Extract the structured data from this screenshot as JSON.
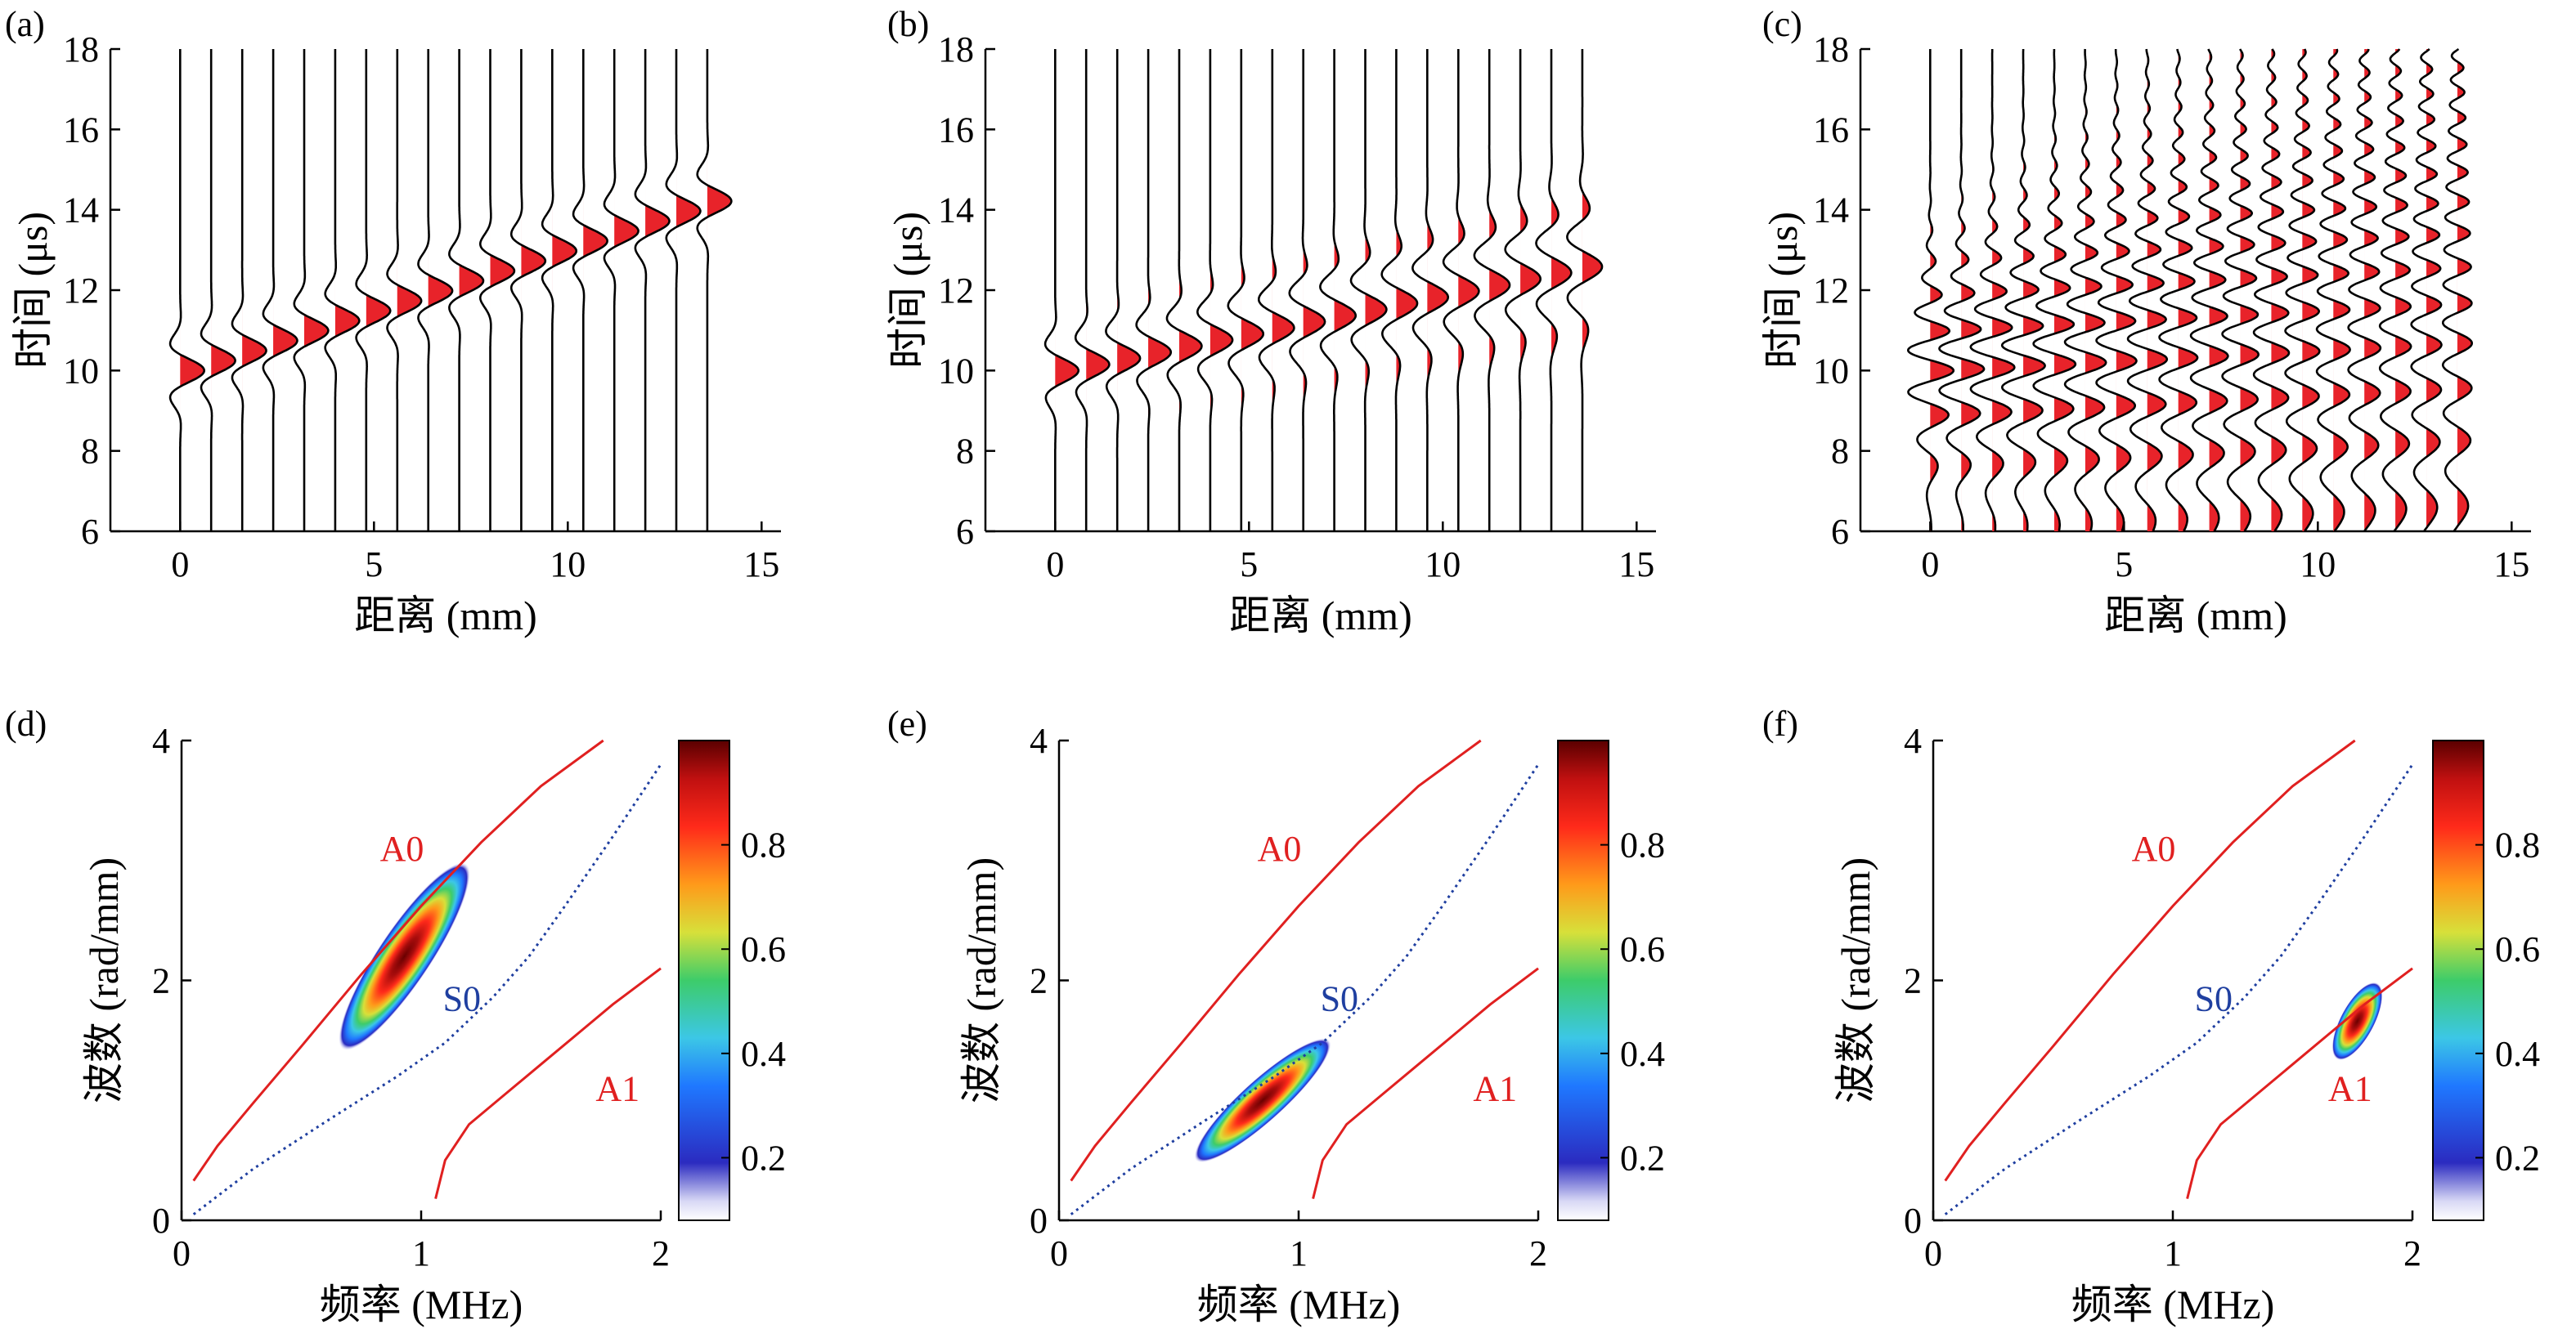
{
  "figure": {
    "panel_labels": [
      "(a)",
      "(b)",
      "(c)",
      "(d)",
      "(e)",
      "(f)"
    ]
  },
  "colors": {
    "fill_red": "#e8232a",
    "a_mode_red": "#e02020",
    "s0_blue": "#1f3fa0",
    "trace": "#000000"
  },
  "chart_data": [
    {
      "id": "a",
      "type": "line",
      "subtype": "waterfall-waveforms",
      "panel_label": "(a)",
      "xlabel": "距离 (mm)",
      "ylabel": "时间 (μs)",
      "xlim": [
        -1.8,
        15.5
      ],
      "ylim": [
        6,
        18
      ],
      "xticks": [
        0,
        5,
        10,
        15
      ],
      "yticks": [
        6,
        8,
        10,
        12,
        14,
        16,
        18
      ],
      "traces": {
        "x_start": 0,
        "x_step": 0.8,
        "count": 18
      },
      "arrival": {
        "t0": 10.0,
        "slope_us_per_mm": 0.31
      },
      "pulse": {
        "amplitude_mm": 0.62,
        "width_us": 0.55,
        "carrier_period_us": 1.6,
        "dispersion": 0.0
      }
    },
    {
      "id": "b",
      "type": "line",
      "subtype": "waterfall-waveforms",
      "panel_label": "(b)",
      "xlabel": "距离 (mm)",
      "ylabel": "时间 (μs)",
      "xlim": [
        -1.8,
        15.5
      ],
      "ylim": [
        6,
        18
      ],
      "xticks": [
        0,
        5,
        10,
        15
      ],
      "yticks": [
        6,
        8,
        10,
        12,
        14,
        16,
        18
      ],
      "traces": {
        "x_start": 0,
        "x_step": 0.8,
        "count": 18
      },
      "arrival": {
        "t0": 10.0,
        "slope_us_per_mm": 0.19
      },
      "pulse": {
        "amplitude_mm": 0.6,
        "width_us": 0.55,
        "carrier_period_us": 1.6,
        "dispersion": 0.045
      }
    },
    {
      "id": "c",
      "type": "line",
      "subtype": "waterfall-waveforms",
      "panel_label": "(c)",
      "xlabel": "距离 (mm)",
      "ylabel": "时间 (μs)",
      "xlim": [
        -1.8,
        15.5
      ],
      "ylim": [
        6,
        18
      ],
      "xticks": [
        0,
        5,
        10,
        15
      ],
      "yticks": [
        6,
        8,
        10,
        12,
        14,
        16,
        18
      ],
      "traces": {
        "x_start": 0,
        "x_step": 0.8,
        "count": 18
      },
      "arrival": {
        "t0": 10.0,
        "slope_us_per_mm": 0.05
      },
      "pulse": {
        "amplitude_mm": 0.6,
        "width_us": 1.6,
        "carrier_period_us": 1.05,
        "dispersion": 0.11
      }
    },
    {
      "id": "d",
      "type": "heatmap",
      "subtype": "dispersion-spectrum",
      "panel_label": "(d)",
      "xlabel": "频率 (MHz)",
      "ylabel": "波数 (rad/mm)",
      "xlim": [
        0,
        2
      ],
      "ylim": [
        0,
        4
      ],
      "xticks": [
        0,
        1,
        2
      ],
      "yticks": [
        0,
        2,
        4
      ],
      "colorbar": {
        "ticks": [
          0.2,
          0.4,
          0.6,
          0.8
        ],
        "range": [
          0.08,
          1.0
        ]
      },
      "blob": {
        "f0": 0.93,
        "k0": 2.2,
        "du": 0.62,
        "dv": 0.14,
        "angle_deg": 56.3
      },
      "mode_labels": [
        {
          "text": "A0",
          "f": 0.92,
          "k": 3.1,
          "color": "red"
        },
        {
          "text": "S0",
          "f": 1.17,
          "k": 1.85,
          "color": "blue"
        },
        {
          "text": "A1",
          "f": 1.82,
          "k": 1.1,
          "color": "red"
        }
      ]
    },
    {
      "id": "e",
      "type": "heatmap",
      "subtype": "dispersion-spectrum",
      "panel_label": "(e)",
      "xlabel": "频率 (MHz)",
      "ylabel": "波数 (rad/mm)",
      "xlim": [
        0,
        2
      ],
      "ylim": [
        0,
        4
      ],
      "xticks": [
        0,
        1,
        2
      ],
      "yticks": [
        0,
        2,
        4
      ],
      "colorbar": {
        "ticks": [
          0.2,
          0.4,
          0.6,
          0.8
        ],
        "range": [
          0.08,
          1.0
        ]
      },
      "blob": {
        "f0": 0.85,
        "k0": 1.0,
        "du": 0.5,
        "dv": 0.11,
        "angle_deg": 42
      },
      "mode_labels": [
        {
          "text": "A0",
          "f": 0.92,
          "k": 3.1,
          "color": "red"
        },
        {
          "text": "S0",
          "f": 1.17,
          "k": 1.85,
          "color": "blue"
        },
        {
          "text": "A1",
          "f": 1.82,
          "k": 1.1,
          "color": "red"
        }
      ]
    },
    {
      "id": "f",
      "type": "heatmap",
      "subtype": "dispersion-spectrum",
      "panel_label": "(f)",
      "xlabel": "频率 (MHz)",
      "ylabel": "波数 (rad/mm)",
      "xlim": [
        0,
        2
      ],
      "ylim": [
        0,
        4
      ],
      "xticks": [
        0,
        1,
        2
      ],
      "yticks": [
        0,
        2,
        4
      ],
      "colorbar": {
        "ticks": [
          0.2,
          0.4,
          0.6,
          0.8
        ],
        "range": [
          0.08,
          1.0
        ]
      },
      "blob": {
        "f0": 1.77,
        "k0": 1.66,
        "du": 0.24,
        "dv": 0.09,
        "angle_deg": 62
      },
      "mode_labels": [
        {
          "text": "A0",
          "f": 0.92,
          "k": 3.1,
          "color": "red"
        },
        {
          "text": "S0",
          "f": 1.17,
          "k": 1.85,
          "color": "blue"
        },
        {
          "text": "A1",
          "f": 1.74,
          "k": 1.1,
          "color": "red"
        }
      ]
    }
  ],
  "dispersion_curves": {
    "A0": {
      "f": [
        0.05,
        0.15,
        0.3,
        0.5,
        0.75,
        1.0,
        1.25,
        1.5,
        1.76
      ],
      "k": [
        0.33,
        0.62,
        0.98,
        1.45,
        2.05,
        2.62,
        3.15,
        3.62,
        4.0
      ]
    },
    "S0": {
      "f": [
        0.05,
        0.3,
        0.6,
        0.9,
        1.1,
        1.3,
        1.45,
        1.6,
        1.8,
        2.0
      ],
      "k": [
        0.05,
        0.43,
        0.82,
        1.2,
        1.48,
        1.86,
        2.2,
        2.62,
        3.2,
        3.8
      ]
    },
    "A1": {
      "f": [
        1.06,
        1.1,
        1.2,
        1.35,
        1.5,
        1.65,
        1.8,
        2.0
      ],
      "k": [
        0.18,
        0.5,
        0.8,
        1.05,
        1.3,
        1.55,
        1.8,
        2.1
      ]
    }
  }
}
